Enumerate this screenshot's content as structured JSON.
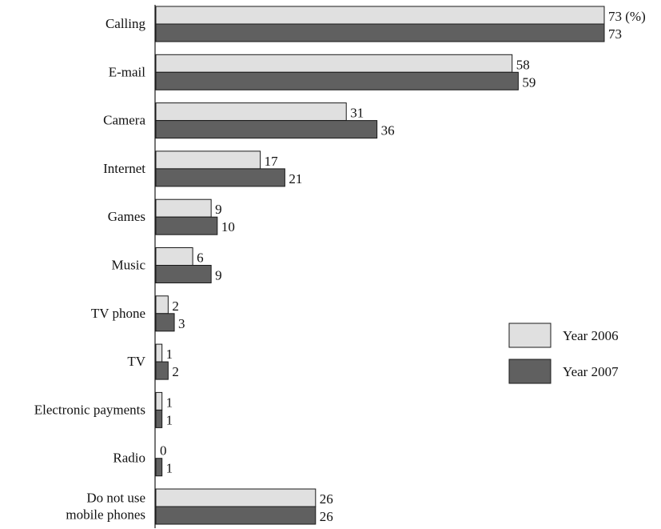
{
  "chart_data": {
    "type": "bar",
    "orientation": "horizontal",
    "categories": [
      "Calling",
      "E-mail",
      "Camera",
      "Internet",
      "Games",
      "Music",
      "TV phone",
      "TV",
      "Electronic payments",
      "Radio",
      "Do not use\nmobile phones"
    ],
    "series": [
      {
        "name": "Year 2006",
        "color": "#e0e0e0",
        "values": [
          73,
          58,
          31,
          17,
          9,
          6,
          2,
          1,
          1,
          0,
          26
        ]
      },
      {
        "name": "Year 2007",
        "color": "#606060",
        "values": [
          73,
          59,
          36,
          21,
          10,
          9,
          3,
          2,
          1,
          1,
          26
        ]
      }
    ],
    "unit_label": "(%)",
    "xlim": [
      0,
      73
    ],
    "grid": false,
    "legend_position": "right"
  }
}
